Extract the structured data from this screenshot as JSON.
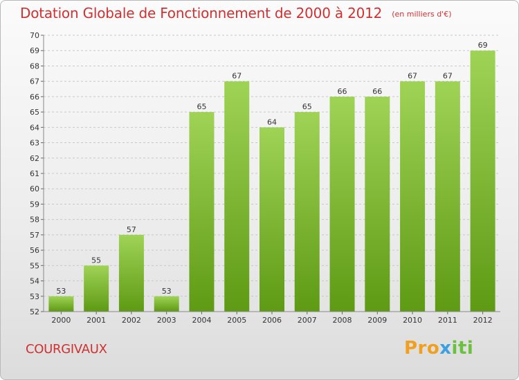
{
  "header": {
    "title": "Dotation Globale de Fonctionnement de 2000 à 2012",
    "subtitle": "(en milliers d'€)"
  },
  "commune": "COURGIVAUX",
  "logo": {
    "text": "Proxiti"
  },
  "colors": {
    "bar_light": "#9fd356",
    "bar_dark": "#5e9a14",
    "title_red": "#d03030",
    "grid": "#c8c8c8"
  },
  "chart_data": {
    "type": "bar",
    "title": "Dotation Globale de Fonctionnement de 2000 à 2012",
    "subtitle": "(en milliers d'€)",
    "categories": [
      "2000",
      "2001",
      "2002",
      "2003",
      "2004",
      "2005",
      "2006",
      "2007",
      "2008",
      "2009",
      "2010",
      "2011",
      "2012"
    ],
    "values": [
      53,
      55,
      57,
      53,
      65,
      67,
      64,
      65,
      66,
      66,
      67,
      67,
      69
    ],
    "ylim": [
      52,
      70
    ],
    "yticks": [
      52,
      53,
      54,
      55,
      56,
      57,
      58,
      59,
      60,
      61,
      62,
      63,
      64,
      65,
      66,
      67,
      68,
      69,
      70
    ],
    "grid": "horizontal dashed",
    "data_labels": true,
    "legend": "none"
  }
}
